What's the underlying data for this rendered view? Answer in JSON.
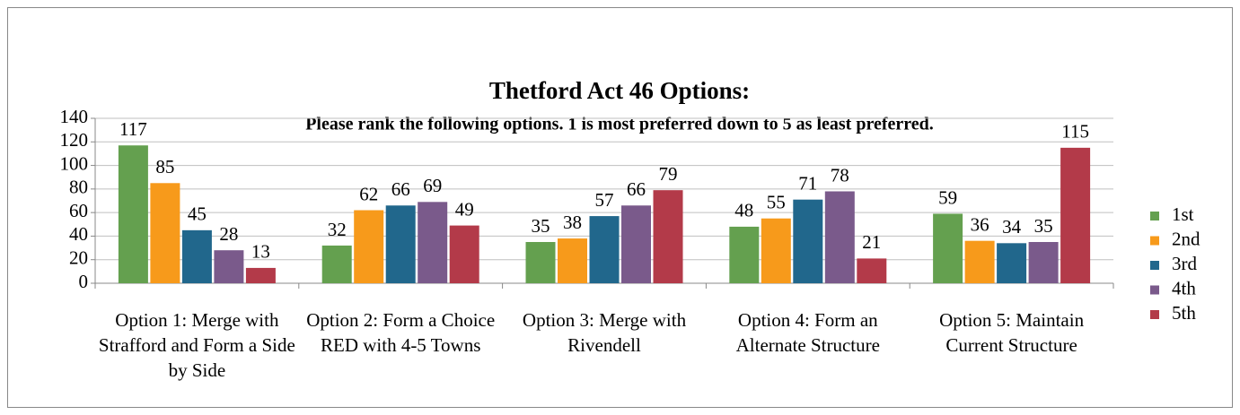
{
  "chart_data": {
    "type": "bar",
    "title": "Thetford Act 46 Options:",
    "subtitle": "Please rank the following options.  1 is most preferred down to 5 as least preferred.",
    "categories": [
      "Option 1: Merge with Strafford and Form a Side by Side",
      "Option 2: Form a Choice RED with 4-5 Towns",
      "Option 3: Merge with Rivendell",
      "Option 4: Form an Alternate Structure",
      "Option 5: Maintain Current Structure"
    ],
    "series": [
      {
        "name": "1st",
        "color": "#64a04f",
        "values": [
          117,
          32,
          35,
          48,
          59
        ]
      },
      {
        "name": "2nd",
        "color": "#f79a1b",
        "values": [
          85,
          62,
          38,
          55,
          36
        ]
      },
      {
        "name": "3rd",
        "color": "#21678c",
        "values": [
          45,
          66,
          57,
          71,
          34
        ]
      },
      {
        "name": "4th",
        "color": "#7a5a8b",
        "values": [
          28,
          69,
          66,
          78,
          35
        ]
      },
      {
        "name": "5th",
        "color": "#b33a49",
        "values": [
          13,
          49,
          79,
          21,
          115
        ]
      }
    ],
    "ylim": [
      0,
      140
    ],
    "yticks": [
      0,
      20,
      40,
      60,
      80,
      100,
      120,
      140
    ],
    "grid": true,
    "legend": "right"
  }
}
